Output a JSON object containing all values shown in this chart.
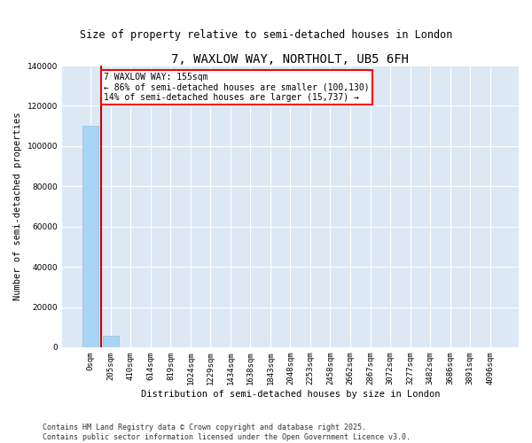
{
  "title": "7, WAXLOW WAY, NORTHOLT, UB5 6FH",
  "subtitle": "Size of property relative to semi-detached houses in London",
  "xlabel": "Distribution of semi-detached houses by size in London",
  "ylabel": "Number of semi-detached properties",
  "footer": "Contains HM Land Registry data © Crown copyright and database right 2025.\nContains public sector information licensed under the Open Government Licence v3.0.",
  "bar_color": "#aad4f5",
  "bar_edge_color": "#8cc0e8",
  "background_color": "#dce9f5",
  "grid_color": "#ffffff",
  "annotation_text": "7 WAXLOW WAY: 155sqm\n← 86% of semi-detached houses are smaller (100,130)\n14% of semi-detached houses are larger (15,737) →",
  "vline_color": "#cc0000",
  "categories": [
    "0sqm",
    "205sqm",
    "410sqm",
    "614sqm",
    "819sqm",
    "1024sqm",
    "1229sqm",
    "1434sqm",
    "1638sqm",
    "1843sqm",
    "2048sqm",
    "2253sqm",
    "2458sqm",
    "2662sqm",
    "2867sqm",
    "3072sqm",
    "3277sqm",
    "3482sqm",
    "3686sqm",
    "3891sqm",
    "4096sqm"
  ],
  "values": [
    110000,
    5500,
    200,
    50,
    20,
    10,
    5,
    3,
    2,
    1,
    1,
    1,
    1,
    0,
    0,
    0,
    0,
    0,
    0,
    0,
    0
  ],
  "ylim": [
    0,
    140000
  ],
  "yticks": [
    0,
    20000,
    40000,
    60000,
    80000,
    100000,
    120000,
    140000
  ],
  "title_fontsize": 10,
  "subtitle_fontsize": 8.5,
  "axis_fontsize": 7.5,
  "tick_fontsize": 6.5,
  "annot_fontsize": 7,
  "footer_fontsize": 6
}
